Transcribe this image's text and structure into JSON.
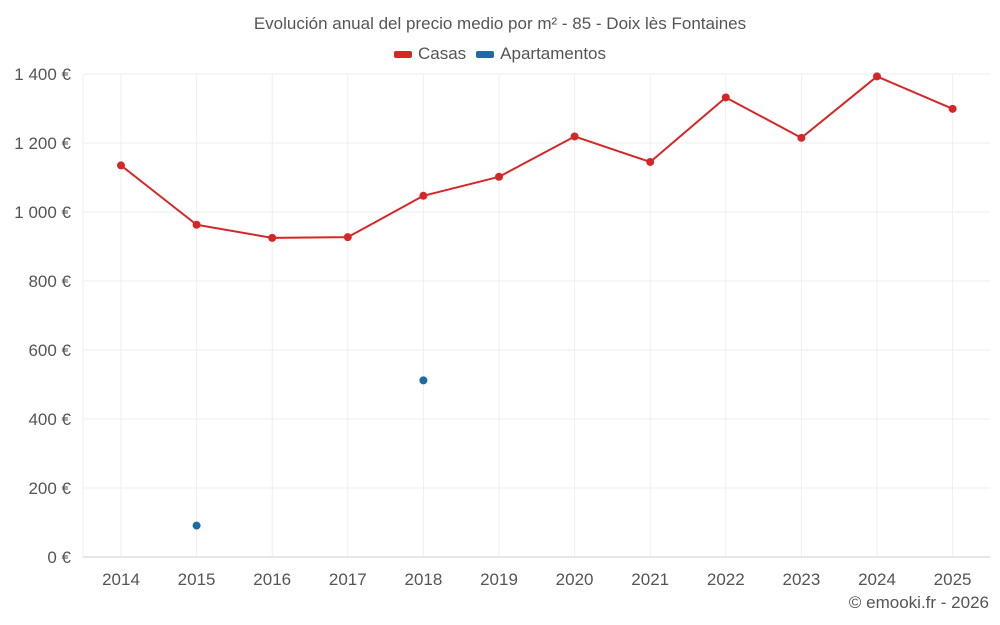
{
  "chart_data": {
    "type": "line",
    "title": "Evolución anual del precio medio por m² - 85 - Doix lès Fontaines",
    "categories": [
      "2014",
      "2015",
      "2016",
      "2017",
      "2018",
      "2019",
      "2020",
      "2021",
      "2022",
      "2023",
      "2024",
      "2025"
    ],
    "series": [
      {
        "name": "Casas",
        "color": "#d62728",
        "mode": "lines+markers",
        "values": [
          1135,
          963,
          925,
          927,
          1047,
          1102,
          1219,
          1145,
          1332,
          1215,
          1393,
          1299
        ]
      },
      {
        "name": "Apartamentos",
        "color": "#1f6aa5",
        "mode": "markers",
        "values": [
          null,
          91,
          null,
          null,
          512,
          null,
          null,
          null,
          null,
          null,
          null,
          null
        ]
      }
    ],
    "y_axis": {
      "min": 0,
      "max": 1400,
      "ticks": [
        0,
        200,
        400,
        600,
        800,
        1000,
        1200,
        1400
      ],
      "tick_labels": [
        "0 €",
        "200 €",
        "400 €",
        "600 €",
        "800 €",
        "1 000 €",
        "1 200 €",
        "1 400 €"
      ]
    },
    "x_axis": {
      "ticks": [
        "2014",
        "2015",
        "2016",
        "2017",
        "2018",
        "2019",
        "2020",
        "2021",
        "2022",
        "2023",
        "2024",
        "2025"
      ]
    },
    "grid": true,
    "legend_position": "top-center"
  },
  "legend": {
    "items": [
      {
        "label": "Casas",
        "color": "#d62728"
      },
      {
        "label": "Apartamentos",
        "color": "#1f6aa5"
      }
    ]
  },
  "credit": "© emooki.fr - 2026"
}
